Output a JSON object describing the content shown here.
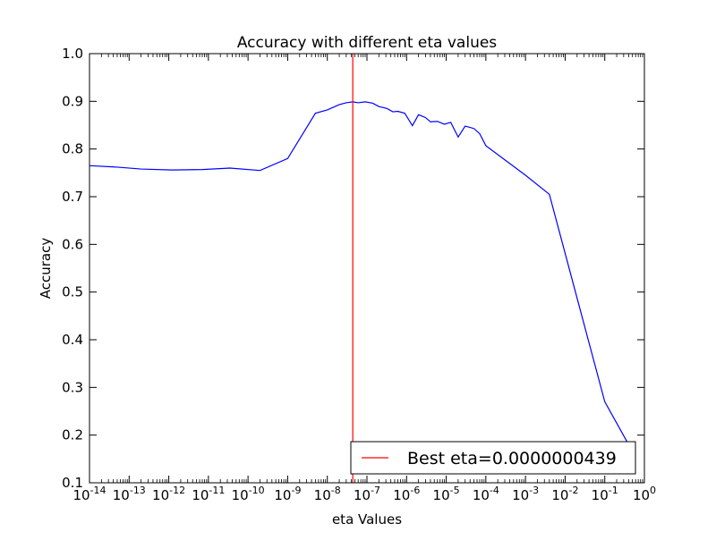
{
  "chart_data": {
    "type": "line",
    "title": "Accuracy with different eta values",
    "xlabel": "eta Values",
    "ylabel": "Accuracy",
    "xscale": "log",
    "xlim": [
      1e-14,
      1
    ],
    "ylim": [
      0.1,
      1.0
    ],
    "grid": false,
    "legend_position": "bottom-right",
    "x_ticks": [
      {
        "base": "10",
        "exp": "-14",
        "value": 1e-14
      },
      {
        "base": "10",
        "exp": "-13",
        "value": 1e-13
      },
      {
        "base": "10",
        "exp": "-12",
        "value": 1e-12
      },
      {
        "base": "10",
        "exp": "-11",
        "value": 1e-11
      },
      {
        "base": "10",
        "exp": "-10",
        "value": 1e-10
      },
      {
        "base": "10",
        "exp": "-9",
        "value": 1e-09
      },
      {
        "base": "10",
        "exp": "-8",
        "value": 1e-08
      },
      {
        "base": "10",
        "exp": "-7",
        "value": 1e-07
      },
      {
        "base": "10",
        "exp": "-6",
        "value": 1e-06
      },
      {
        "base": "10",
        "exp": "-5",
        "value": 1e-05
      },
      {
        "base": "10",
        "exp": "-4",
        "value": 0.0001
      },
      {
        "base": "10",
        "exp": "-3",
        "value": 0.001
      },
      {
        "base": "10",
        "exp": "-2",
        "value": 0.01
      },
      {
        "base": "10",
        "exp": "-1",
        "value": 0.1
      },
      {
        "base": "10",
        "exp": "0",
        "value": 1
      }
    ],
    "y_ticks": [
      "0.1",
      "0.2",
      "0.3",
      "0.4",
      "0.5",
      "0.6",
      "0.7",
      "0.8",
      "0.9",
      "1.0"
    ],
    "series": [
      {
        "color": "#0000ff",
        "points": [
          [
            1e-14,
            0.765
          ],
          [
            5e-14,
            0.762
          ],
          [
            2e-13,
            0.758
          ],
          [
            1.2e-12,
            0.756
          ],
          [
            7e-12,
            0.757
          ],
          [
            3.5e-11,
            0.76
          ],
          [
            2e-10,
            0.755
          ],
          [
            1e-09,
            0.78
          ],
          [
            5e-09,
            0.875
          ],
          [
            1e-08,
            0.882
          ],
          [
            2e-08,
            0.893
          ],
          [
            3e-08,
            0.897
          ],
          [
            4.39e-08,
            0.899
          ],
          [
            6e-08,
            0.897
          ],
          [
            9e-08,
            0.899
          ],
          [
            1.4e-07,
            0.896
          ],
          [
            2e-07,
            0.889
          ],
          [
            3.2e-07,
            0.885
          ],
          [
            4.5e-07,
            0.878
          ],
          [
            6e-07,
            0.879
          ],
          [
            9e-07,
            0.875
          ],
          [
            1.4e-06,
            0.849
          ],
          [
            2e-06,
            0.872
          ],
          [
            3e-06,
            0.866
          ],
          [
            4e-06,
            0.857
          ],
          [
            6e-06,
            0.858
          ],
          [
            9e-06,
            0.852
          ],
          [
            1.3e-05,
            0.856
          ],
          [
            2e-05,
            0.825
          ],
          [
            3e-05,
            0.848
          ],
          [
            5e-05,
            0.843
          ],
          [
            7e-05,
            0.832
          ],
          [
            0.0001,
            0.807
          ],
          [
            0.001,
            0.745
          ],
          [
            0.004,
            0.705
          ],
          [
            0.1,
            0.27
          ],
          [
            0.4,
            0.18
          ]
        ]
      }
    ],
    "best_line": {
      "x": 4.39e-08,
      "color": "#ff0000",
      "label": "Best eta=0.0000000439"
    }
  }
}
